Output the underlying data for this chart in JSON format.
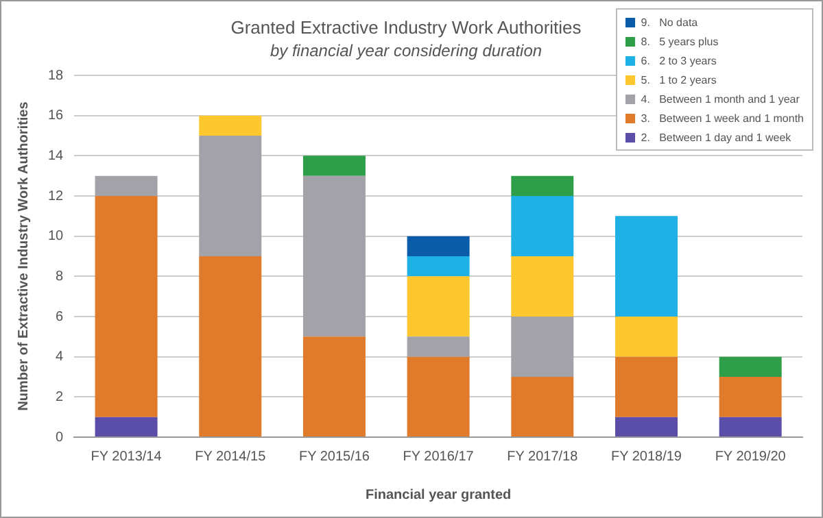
{
  "chart_data": {
    "type": "bar",
    "title": "Granted Extractive Industry Work Authorities",
    "subtitle": "by financial year considering duration",
    "xlabel": "Financial year granted",
    "ylabel": "Number of Extractive Industry Work Authorities",
    "categories": [
      "FY 2013/14",
      "FY 2014/15",
      "FY 2015/16",
      "FY 2016/17",
      "FY 2017/18",
      "FY 2018/19",
      "FY 2019/20"
    ],
    "stacked": true,
    "ylim": [
      0,
      18
    ],
    "yticks": [
      0,
      2,
      4,
      6,
      8,
      10,
      12,
      14,
      16,
      18
    ],
    "grid": "y",
    "legend": "top right",
    "series": [
      {
        "name": "2.   Between 1 day and 1 week",
        "color": "#5b4ea8",
        "values": [
          1,
          0,
          0,
          0,
          0,
          1,
          1
        ]
      },
      {
        "name": "3.   Between 1 week and 1 month",
        "color": "#e07b2c",
        "values": [
          11,
          9,
          5,
          4,
          3,
          3,
          2
        ]
      },
      {
        "name": "4.   Between 1 month and 1 year",
        "color": "#a2a2a8",
        "values": [
          1,
          6,
          8,
          1,
          3,
          0,
          0
        ]
      },
      {
        "name": "5.   1 to 2 years",
        "color": "#fdc82f",
        "values": [
          0,
          1,
          0,
          3,
          3,
          2,
          0
        ]
      },
      {
        "name": "6.   2 to 3 years",
        "color": "#1fb0e6",
        "values": [
          0,
          0,
          0,
          1,
          3,
          5,
          0
        ]
      },
      {
        "name": "8.   5 years plus",
        "color": "#2e9e48",
        "values": [
          0,
          0,
          1,
          0,
          1,
          0,
          1
        ]
      },
      {
        "name": "9.   No data",
        "color": "#0a5ca8",
        "values": [
          0,
          0,
          0,
          1,
          0,
          0,
          0
        ]
      }
    ]
  }
}
